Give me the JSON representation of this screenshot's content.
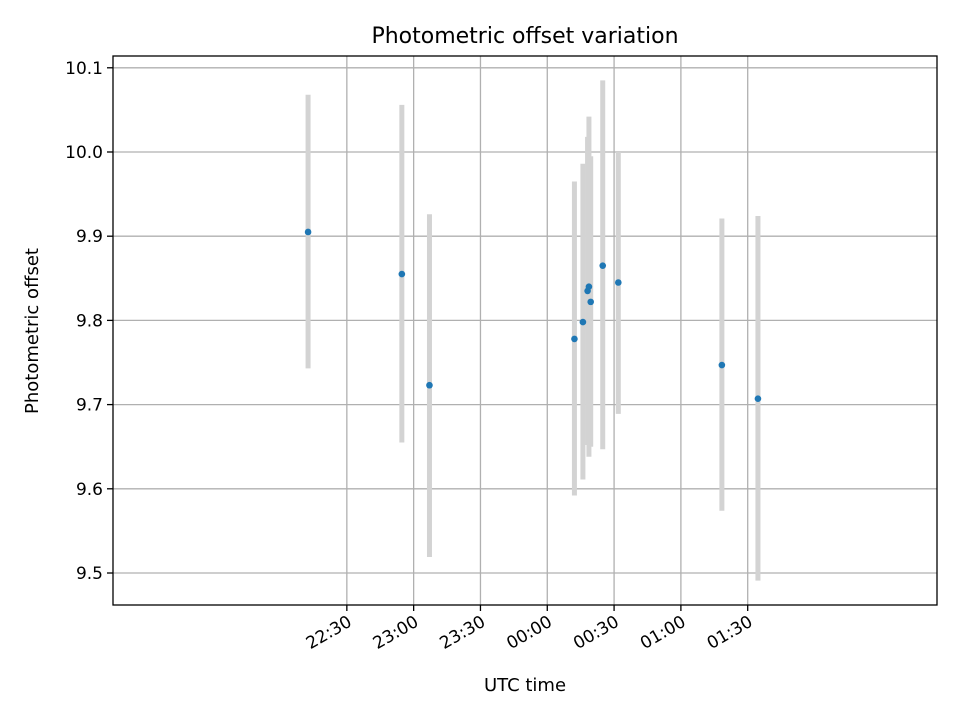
{
  "chart_data": {
    "type": "scatter",
    "title": "Photometric offset variation",
    "xlabel": "UTC time",
    "ylabel": "Photometric offset",
    "x_unit": "minutes relative to 00:00 UTC",
    "xlim": [
      -195,
      175
    ],
    "ylim": [
      9.462,
      10.114
    ],
    "grid": true,
    "x_ticks": [
      {
        "value": -90,
        "label": "22:30"
      },
      {
        "value": -60,
        "label": "23:00"
      },
      {
        "value": -30,
        "label": "23:30"
      },
      {
        "value": 0,
        "label": "00:00"
      },
      {
        "value": 30,
        "label": "00:30"
      },
      {
        "value": 60,
        "label": "01:00"
      },
      {
        "value": 90,
        "label": "01:30"
      }
    ],
    "y_ticks": [
      {
        "value": 9.5,
        "label": "9.5"
      },
      {
        "value": 9.6,
        "label": "9.6"
      },
      {
        "value": 9.7,
        "label": "9.7"
      },
      {
        "value": 9.8,
        "label": "9.8"
      },
      {
        "value": 9.9,
        "label": "9.9"
      },
      {
        "value": 10.0,
        "label": "10.0"
      },
      {
        "value": 10.1,
        "label": "10.1"
      }
    ],
    "points": [
      {
        "time": "22:07",
        "x": -107.4,
        "y": 9.905,
        "ylow": 9.743,
        "yhigh": 10.068
      },
      {
        "time": "22:55",
        "x": -65.3,
        "y": 9.855,
        "ylow": 9.655,
        "yhigh": 10.056
      },
      {
        "time": "23:07",
        "x": -52.9,
        "y": 9.723,
        "ylow": 9.519,
        "yhigh": 9.926
      },
      {
        "time": "00:12",
        "x": 12.2,
        "y": 9.778,
        "ylow": 9.592,
        "yhigh": 9.965
      },
      {
        "time": "00:16",
        "x": 16.0,
        "y": 9.798,
        "ylow": 9.611,
        "yhigh": 9.986
      },
      {
        "time": "00:18",
        "x": 18.1,
        "y": 9.835,
        "ylow": 9.652,
        "yhigh": 10.018
      },
      {
        "time": "00:18",
        "x": 18.7,
        "y": 9.84,
        "ylow": 9.638,
        "yhigh": 10.042
      },
      {
        "time": "00:19",
        "x": 19.5,
        "y": 9.822,
        "ylow": 9.65,
        "yhigh": 9.995
      },
      {
        "time": "00:25",
        "x": 24.9,
        "y": 9.865,
        "ylow": 9.647,
        "yhigh": 10.085
      },
      {
        "time": "00:32",
        "x": 31.9,
        "y": 9.845,
        "ylow": 9.689,
        "yhigh": 10.0
      },
      {
        "time": "01:18",
        "x": 78.4,
        "y": 9.747,
        "ylow": 9.574,
        "yhigh": 9.921
      },
      {
        "time": "01:34",
        "x": 94.6,
        "y": 9.707,
        "ylow": 9.491,
        "yhigh": 9.924
      }
    ],
    "series_color": "#1f77b4",
    "errorbar_color": "#d3d3d3"
  }
}
